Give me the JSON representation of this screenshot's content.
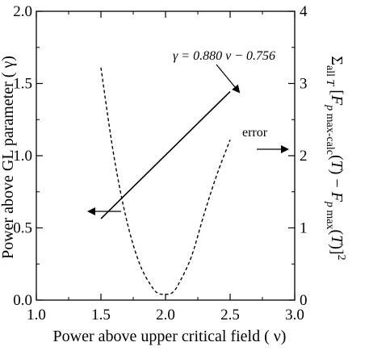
{
  "chart_data": {
    "type": "line",
    "xlabel": "Power above upper critical field ( ν)",
    "ylabel_left": "Power above GL parameter ( γ)",
    "ylabel_right": "Σall T [Fp max-calc(T) − Fp max(T)]²",
    "xlim": [
      1.0,
      3.0
    ],
    "ylim_left": [
      0.0,
      2.0
    ],
    "ylim_right": [
      0,
      4
    ],
    "x_ticks": [
      "1.0",
      "1.5",
      "2.0",
      "2.5",
      "3.0"
    ],
    "y_left_ticks": [
      "0.0",
      "0.5",
      "1.0",
      "1.5",
      "2.0"
    ],
    "y_right_ticks": [
      "0",
      "1",
      "2",
      "3",
      "4"
    ],
    "grid": false,
    "series": [
      {
        "axis": "left",
        "style": "solid",
        "x": [
          1.5,
          2.5
        ],
        "y": [
          0.564,
          1.444
        ]
      },
      {
        "name": "error",
        "axis": "right",
        "style": "dashed",
        "x": [
          1.5,
          1.6,
          1.7,
          1.8,
          1.9,
          1.95,
          2.0,
          2.05,
          2.1,
          2.2,
          2.3,
          2.4,
          2.5
        ],
        "y": [
          3.22,
          2.0,
          1.1,
          0.5,
          0.17,
          0.09,
          0.08,
          0.1,
          0.22,
          0.6,
          1.2,
          1.75,
          2.22
        ]
      }
    ],
    "annotations": {
      "equation": "γ = 0.880 ν − 0.756",
      "error_label": "error"
    }
  }
}
